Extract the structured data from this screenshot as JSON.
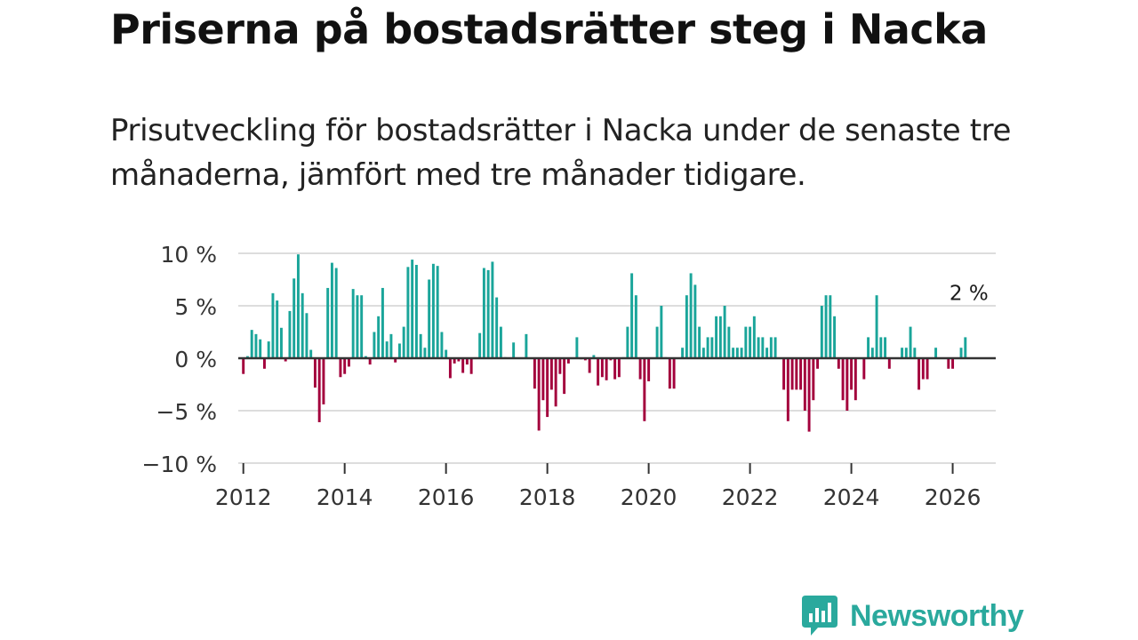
{
  "title": "Priserna på bostadsrätter steg i Nacka",
  "subtitle": "Prisutveckling för bostadsrätter i Nacka under de senaste tre månaderna, jämfört med tre månader tidigare.",
  "brand": {
    "name": "Newsworthy"
  },
  "colors": {
    "positive": "#1aa59a",
    "negative": "#a3003c",
    "grid": "#dddddd",
    "zero": "#333333",
    "axis_text": "#333333",
    "brand": "#2aa99d"
  },
  "chart_data": {
    "type": "bar",
    "title": "Priserna på bostadsrätter steg i Nacka",
    "xlabel": "",
    "ylabel": "",
    "unit": "%",
    "ylim": [
      -10,
      10
    ],
    "xlim": [
      2011.9,
      2026.85
    ],
    "grid": true,
    "y_ticks": [
      {
        "value": 10,
        "label": "10 %"
      },
      {
        "value": 5,
        "label": "5 %"
      },
      {
        "value": 0,
        "label": "0 %"
      },
      {
        "value": -5,
        "label": "−5 %"
      },
      {
        "value": -10,
        "label": "−10 %"
      }
    ],
    "x_ticks": [
      {
        "value": 2012,
        "label": "2012"
      },
      {
        "value": 2014,
        "label": "2014"
      },
      {
        "value": 2016,
        "label": "2016"
      },
      {
        "value": 2018,
        "label": "2018"
      },
      {
        "value": 2020,
        "label": "2020"
      },
      {
        "value": 2022,
        "label": "2022"
      },
      {
        "value": 2024,
        "label": "2024"
      },
      {
        "value": 2026,
        "label": "2026"
      }
    ],
    "start": "2012-01",
    "frequency": "monthly",
    "series": [
      {
        "name": "Prisutveckling",
        "values": [
          -1.5,
          0.2,
          2.7,
          2.3,
          1.8,
          -1.0,
          1.6,
          6.2,
          5.5,
          2.9,
          -0.3,
          4.5,
          7.6,
          9.9,
          6.2,
          4.3,
          0.8,
          -2.8,
          -6.1,
          -4.4,
          6.7,
          9.1,
          8.6,
          -1.8,
          -1.5,
          -0.8,
          6.6,
          6.0,
          6.0,
          0.2,
          -0.6,
          2.5,
          4.0,
          6.7,
          1.6,
          2.3,
          -0.4,
          1.4,
          3.0,
          8.7,
          9.4,
          8.9,
          2.3,
          1.0,
          7.5,
          9.0,
          8.8,
          2.5,
          0.8,
          -1.9,
          -0.5,
          -0.3,
          -1.4,
          -0.6,
          -1.5,
          0.0,
          2.4,
          8.6,
          8.4,
          9.2,
          5.8,
          3.0,
          0.1,
          0.0,
          1.5,
          0.0,
          0.0,
          2.3,
          0.0,
          -2.9,
          -6.9,
          -4.0,
          -5.6,
          -3.0,
          -4.6,
          -1.5,
          -3.4,
          -0.5,
          0.0,
          2.0,
          -0.1,
          -0.2,
          -1.4,
          0.3,
          -2.6,
          -1.8,
          -2.1,
          -0.2,
          -2.0,
          -1.8,
          0.1,
          3.0,
          8.1,
          6.0,
          -2.0,
          -6.0,
          -2.2,
          0.0,
          3.0,
          5.0,
          0.1,
          -2.9,
          -2.9,
          0.0,
          1.0,
          6.0,
          8.1,
          7.0,
          3.0,
          1.0,
          2.0,
          2.0,
          4.0,
          4.0,
          5.0,
          3.0,
          1.0,
          1.0,
          1.0,
          3.0,
          3.0,
          4.0,
          2.0,
          2.0,
          1.0,
          2.0,
          2.0,
          0.0,
          -3.0,
          -6.0,
          -3.0,
          -3.0,
          -3.0,
          -5.0,
          -7.0,
          -4.0,
          -1.0,
          5.0,
          6.0,
          6.0,
          4.0,
          -1.0,
          -4.0,
          -5.0,
          -3.0,
          -4.0,
          0.0,
          -2.0,
          2.0,
          1.0,
          6.0,
          2.0,
          2.0,
          -1.0,
          0.0,
          0.0,
          1.0,
          1.0,
          3.0,
          1.0,
          -3.0,
          -2.0,
          -2.0,
          0.0,
          1.0,
          0.0,
          0.0,
          -1.0,
          -1.0,
          0.0,
          1.0,
          2.0
        ]
      }
    ],
    "annotations": [
      {
        "text": "2 %",
        "x": 2026.25,
        "y": 2
      }
    ]
  }
}
